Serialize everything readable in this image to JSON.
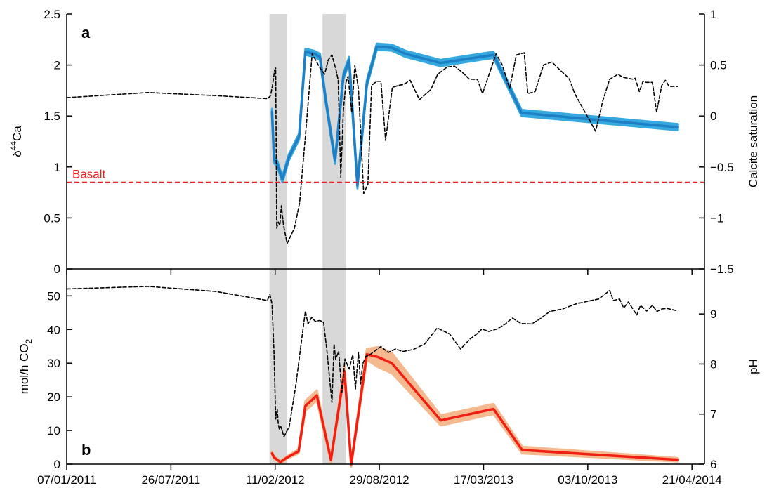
{
  "chart_data": [
    {
      "type": "line",
      "panel_label": "a",
      "x_axis": {
        "type": "date",
        "range": [
          "2011-01-07",
          "2014-05-15"
        ]
      },
      "ylabel_base": "δ",
      "ylabel_sup": "44",
      "ylabel_rest": "Ca",
      "ylim": [
        0,
        2.5
      ],
      "yticks": [
        0,
        0.5,
        1,
        1.5,
        2,
        2.5
      ],
      "yticks_labels": [
        "0",
        "0.5",
        "1",
        "1.5",
        "2",
        "2.5"
      ],
      "ylabel_right": "Calcite saturation",
      "ylim_right": [
        -1.5,
        1
      ],
      "yticks_right": [
        -1.5,
        -1,
        -0.5,
        0,
        0.5,
        1
      ],
      "yticks_right_labels": [
        "−1.5",
        "−1",
        "−0.5",
        "0",
        "0.5",
        "1"
      ],
      "shaded_periods": [
        [
          "2012-01-31",
          "2012-03-05"
        ],
        [
          "2012-05-12",
          "2012-06-26"
        ]
      ],
      "reference_line": {
        "label": "Basalt",
        "value": 0.85,
        "color": "#e8201f"
      },
      "series": [
        {
          "axis": "left",
          "style": "solid",
          "color": "#1f7fc4",
          "band_color": "#36a8e0",
          "band_halfwidth": 0.03,
          "x": [
            "2012-02-05",
            "2012-02-09",
            "2012-02-15",
            "2012-02-25",
            "2012-03-08",
            "2012-03-28",
            "2012-04-09",
            "2012-04-26",
            "2012-05-07",
            "2012-05-17",
            "2012-06-05",
            "2012-06-21",
            "2012-07-02",
            "2012-07-18",
            "2012-08-05",
            "2012-08-24",
            "2012-09-22",
            "2012-10-18",
            "2012-12-24",
            "2013-04-05",
            "2013-05-29",
            "2014-03-25"
          ],
          "y": [
            1.54,
            1.07,
            1.03,
            0.88,
            1.09,
            1.3,
            2.13,
            2.11,
            2.08,
            1.7,
            1.06,
            1.89,
            2.05,
            0.82,
            1.82,
            2.18,
            2.17,
            2.11,
            2.02,
            2.1,
            1.53,
            1.39
          ]
        },
        {
          "axis": "right",
          "style": "dashed",
          "color": "#000000",
          "x": [
            "2011-01-07",
            "2011-06-12",
            "2011-10-20",
            "2012-01-28",
            "2012-02-02",
            "2012-02-06",
            "2012-02-10",
            "2012-02-12",
            "2012-02-14",
            "2012-02-17",
            "2012-02-20",
            "2012-02-23",
            "2012-02-27",
            "2012-03-05",
            "2012-03-19",
            "2012-03-29",
            "2012-04-09",
            "2012-04-22",
            "2012-05-06",
            "2012-05-16",
            "2012-05-23",
            "2012-05-30",
            "2012-06-07",
            "2012-06-11",
            "2012-06-16",
            "2012-06-21",
            "2012-06-26",
            "2012-06-30",
            "2012-07-07",
            "2012-07-13",
            "2012-07-20",
            "2012-07-30",
            "2012-08-07",
            "2012-08-14",
            "2012-08-24",
            "2012-09-01",
            "2012-09-10",
            "2012-09-23",
            "2012-10-05",
            "2012-10-15",
            "2012-10-27",
            "2012-11-14",
            "2012-12-06",
            "2012-12-19",
            "2013-01-06",
            "2013-01-20",
            "2013-02-04",
            "2013-02-18",
            "2013-03-05",
            "2013-03-15",
            "2013-03-29",
            "2013-04-10",
            "2013-04-22",
            "2013-05-06",
            "2013-05-19",
            "2013-06-03",
            "2013-06-10",
            "2013-06-24",
            "2013-07-10",
            "2013-07-26",
            "2013-08-11",
            "2013-08-28",
            "2013-09-08",
            "2013-09-21",
            "2013-10-04",
            "2013-10-18",
            "2013-11-01",
            "2013-11-14",
            "2013-11-30",
            "2013-12-09",
            "2013-12-29",
            "2014-01-02",
            "2014-01-10",
            "2014-01-17",
            "2014-01-23",
            "2014-02-04",
            "2014-02-12",
            "2014-02-22",
            "2014-03-01",
            "2014-03-08",
            "2014-03-25"
          ],
          "y": [
            0.18,
            0.23,
            0.2,
            0.17,
            0.2,
            0.3,
            0.45,
            0.47,
            -1.1,
            -1.04,
            -1.07,
            -0.88,
            -1.07,
            -1.25,
            -1.1,
            -0.85,
            -0.2,
            0.61,
            0.48,
            0.41,
            0.55,
            0.6,
            0.45,
            0.35,
            -0.6,
            0.06,
            0.33,
            0.39,
            0.03,
            0.5,
            0.26,
            -0.76,
            -0.67,
            0.3,
            0.34,
            0.34,
            -0.24,
            0.28,
            0.3,
            0.31,
            0.35,
            0.16,
            0.26,
            0.41,
            0.48,
            0.49,
            0.43,
            0.36,
            0.36,
            0.22,
            0.43,
            0.61,
            0.5,
            0.27,
            0.6,
            0.62,
            0.22,
            0.24,
            0.5,
            0.53,
            0.45,
            0.37,
            0.22,
            0.1,
            -0.02,
            -0.15,
            0.15,
            0.36,
            0.41,
            0.38,
            0.36,
            0.37,
            0.24,
            0.34,
            0.33,
            0.33,
            0.04,
            0.3,
            0.35,
            0.29,
            0.29
          ]
        }
      ]
    },
    {
      "type": "line",
      "panel_label": "b",
      "x_axis": {
        "type": "date",
        "range": [
          "2011-01-07",
          "2014-05-15"
        ]
      },
      "xticks": [
        "2011-01-07",
        "2011-07-26",
        "2012-02-11",
        "2012-08-29",
        "2013-03-17",
        "2013-10-03",
        "2014-04-21"
      ],
      "xticks_labels": [
        "07/01/2011",
        "26/07/2011",
        "11/02/2012",
        "29/08/2012",
        "17/03/2013",
        "03/10/2013",
        "21/04/2014"
      ],
      "ylabel_base": "mol/h CO",
      "ylabel_sub": "2",
      "ylim": [
        0,
        58
      ],
      "yticks": [
        0,
        10,
        20,
        30,
        40,
        50
      ],
      "yticks_labels": [
        "0",
        "10",
        "20",
        "30",
        "40",
        "50"
      ],
      "ylabel_right": "pH",
      "ylim_right": [
        6,
        9.9
      ],
      "yticks_right": [
        6,
        7,
        8,
        9
      ],
      "yticks_right_labels": [
        "6",
        "7",
        "8",
        "9"
      ],
      "shaded_periods": [
        [
          "2012-01-31",
          "2012-03-05"
        ],
        [
          "2012-05-12",
          "2012-06-26"
        ]
      ],
      "series": [
        {
          "axis": "left",
          "style": "solid",
          "color": "#f01f14",
          "band_color": "#f5b98f",
          "band_halfwidth": [
            0.4,
            0.4,
            0.4,
            0.4,
            0.6,
            1.5,
            1.5,
            0.8,
            1.6,
            0.8,
            1.6,
            3.0,
            3.0,
            1.5,
            1.5,
            1.0,
            0.5
          ],
          "x": [
            "2012-02-05",
            "2012-02-09",
            "2012-02-21",
            "2012-03-05",
            "2012-03-27",
            "2012-04-09",
            "2012-05-01",
            "2012-05-28",
            "2012-06-23",
            "2012-07-06",
            "2012-08-05",
            "2012-08-27",
            "2012-09-22",
            "2012-12-25",
            "2013-04-05",
            "2013-05-30",
            "2014-03-25"
          ],
          "y": [
            3.2,
            2.0,
            0.6,
            2.0,
            3.8,
            17.3,
            20.4,
            1.3,
            27.6,
            0.0,
            32.6,
            31.8,
            30.0,
            13.0,
            16.4,
            4.2,
            1.3
          ]
        },
        {
          "axis": "right",
          "style": "dashed",
          "color": "#000000",
          "x": [
            "2011-01-07",
            "2011-06-12",
            "2011-10-20",
            "2012-01-27",
            "2012-02-01",
            "2012-02-05",
            "2012-02-09",
            "2012-02-12",
            "2012-02-15",
            "2012-02-17",
            "2012-02-19",
            "2012-02-22",
            "2012-02-28",
            "2012-03-09",
            "2012-03-22",
            "2012-04-02",
            "2012-04-09",
            "2012-04-14",
            "2012-04-21",
            "2012-04-28",
            "2012-05-07",
            "2012-05-14",
            "2012-05-20",
            "2012-05-30",
            "2012-06-03",
            "2012-06-06",
            "2012-06-12",
            "2012-06-18",
            "2012-06-24",
            "2012-07-02",
            "2012-07-09",
            "2012-07-14",
            "2012-07-20",
            "2012-07-24",
            "2012-07-28",
            "2012-08-03",
            "2012-08-10",
            "2012-08-19",
            "2012-09-01",
            "2012-09-15",
            "2012-09-29",
            "2012-10-13",
            "2012-11-02",
            "2012-11-24",
            "2012-12-18",
            "2013-01-11",
            "2013-02-01",
            "2013-02-19",
            "2013-03-04",
            "2013-03-14",
            "2013-03-27",
            "2013-04-12",
            "2013-04-28",
            "2013-05-11",
            "2013-05-28",
            "2013-06-17",
            "2013-07-03",
            "2013-07-22",
            "2013-08-16",
            "2013-09-10",
            "2013-10-01",
            "2013-10-24",
            "2013-11-14",
            "2013-11-21",
            "2013-12-03",
            "2013-12-11",
            "2013-12-20",
            "2014-01-05",
            "2014-01-12",
            "2014-01-24",
            "2014-02-04",
            "2014-02-13",
            "2014-02-22",
            "2014-03-05",
            "2014-03-25"
          ],
          "y": [
            9.5,
            9.55,
            9.45,
            9.27,
            9.39,
            9.2,
            8.2,
            6.9,
            7.1,
            6.8,
            6.7,
            6.75,
            6.55,
            6.75,
            7.6,
            8.5,
            9.06,
            8.8,
            8.93,
            8.85,
            8.87,
            8.83,
            8.3,
            7.23,
            8.4,
            8.1,
            8.25,
            7.43,
            8.1,
            7.9,
            8.19,
            7.5,
            8.23,
            7.6,
            8.0,
            8.15,
            8.18,
            8.25,
            8.35,
            8.23,
            8.3,
            8.25,
            8.29,
            8.4,
            8.72,
            8.6,
            8.3,
            8.5,
            8.6,
            8.7,
            8.65,
            8.7,
            8.8,
            8.92,
            8.81,
            8.8,
            8.9,
            9.05,
            9.1,
            9.2,
            9.25,
            9.3,
            9.47,
            9.27,
            9.3,
            9.12,
            9.24,
            8.98,
            9.17,
            9.06,
            9.17,
            9.05,
            9.1,
            9.11,
            9.06
          ]
        }
      ]
    }
  ]
}
